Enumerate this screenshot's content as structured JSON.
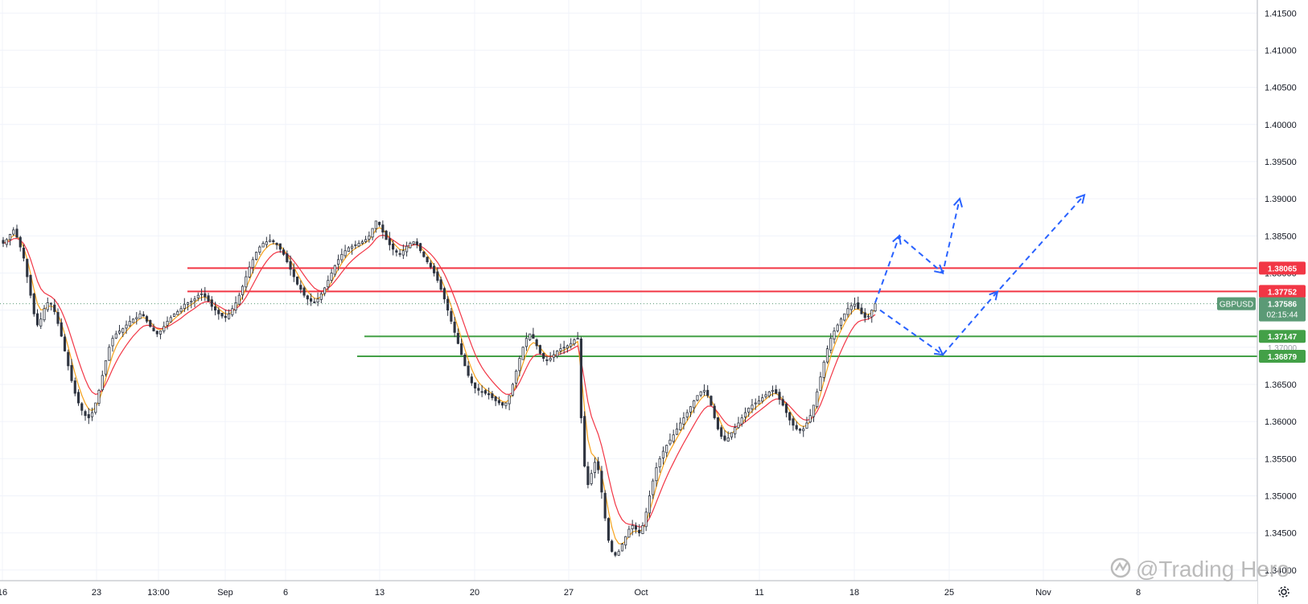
{
  "symbol": "GBPUSD",
  "countdown": "02:15:44",
  "watermark": "@Trading Hero",
  "colors": {
    "up": "#26a69a",
    "down": "#ef5350",
    "candle_body": "#2e3440",
    "resistance": "#f23645",
    "support": "#43a047",
    "projection": "#2962ff",
    "ema_fast": "#f7a21b",
    "ema_slow": "#f23645",
    "price_tag": "#5b9a76"
  },
  "chart_data": {
    "type": "candlestick",
    "title": "",
    "xlabel": "",
    "ylabel": "",
    "ylim": [
      1.33857,
      1.41676
    ],
    "y_ticks": [
      "1.41500",
      "1.41000",
      "1.40500",
      "1.40000",
      "1.39500",
      "1.39000",
      "1.38500",
      "1.38000",
      "1.37500",
      "1.37000",
      "1.36500",
      "1.36000",
      "1.35500",
      "1.35000",
      "1.34500",
      "1.34000"
    ],
    "x_ticks": [
      "16",
      "23",
      "13:00",
      "Sep",
      "6",
      "13",
      "20",
      "27",
      "Oct",
      "11",
      "18",
      "25",
      "Nov",
      "8"
    ],
    "grid": true,
    "levels": [
      {
        "label": "1.38065",
        "value": 1.38065,
        "kind": "resistance"
      },
      {
        "label": "1.37752",
        "value": 1.37752,
        "kind": "resistance"
      },
      {
        "label": "1.37147",
        "value": 1.37147,
        "kind": "support"
      },
      {
        "label": "1.36879",
        "value": 1.36879,
        "kind": "support"
      }
    ],
    "current_price": {
      "symbol": "GBPUSD",
      "value": "1.37586",
      "countdown": "02:15:44"
    },
    "hidden_label": "1.37000",
    "closes_approx": [
      1.384,
      1.3845,
      1.3852,
      1.3858,
      1.3848,
      1.3835,
      1.382,
      1.3795,
      1.377,
      1.3745,
      1.373,
      1.3738,
      1.3752,
      1.376,
      1.3758,
      1.3748,
      1.3732,
      1.3715,
      1.3695,
      1.3675,
      1.3655,
      1.3638,
      1.3625,
      1.3615,
      1.3608,
      1.3605,
      1.3612,
      1.3625,
      1.3642,
      1.3662,
      1.3682,
      1.37,
      1.3712,
      1.3718,
      1.3722,
      1.3725,
      1.373,
      1.3735,
      1.3738,
      1.374,
      1.3745,
      1.3742,
      1.3735,
      1.3728,
      1.3722,
      1.3718,
      1.3722,
      1.3728,
      1.3735,
      1.374,
      1.3745,
      1.3748,
      1.3752,
      1.3758,
      1.376,
      1.3762,
      1.3765,
      1.377,
      1.3772,
      1.3768,
      1.3762,
      1.3755,
      1.375,
      1.3745,
      1.3742,
      1.374,
      1.3745,
      1.3752,
      1.376,
      1.377,
      1.3782,
      1.3795,
      1.3808,
      1.3818,
      1.3828,
      1.3835,
      1.384,
      1.3842,
      1.3844,
      1.3842,
      1.3838,
      1.3832,
      1.3825,
      1.3815,
      1.3805,
      1.3795,
      1.3785,
      1.3778,
      1.377,
      1.3765,
      1.3762,
      1.376,
      1.3765,
      1.3772,
      1.378,
      1.379,
      1.38,
      1.381,
      1.3818,
      1.3825,
      1.383,
      1.3834,
      1.3836,
      1.3838,
      1.384,
      1.3842,
      1.3845,
      1.385,
      1.386,
      1.387,
      1.3865,
      1.3855,
      1.3845,
      1.3838,
      1.3832,
      1.3828,
      1.3825,
      1.383,
      1.3836,
      1.384,
      1.3842,
      1.3838,
      1.383,
      1.3822,
      1.3815,
      1.3808,
      1.38,
      1.379,
      1.3778,
      1.3765,
      1.375,
      1.3735,
      1.372,
      1.3705,
      1.369,
      1.3675,
      1.3662,
      1.3652,
      1.3645,
      1.3642,
      1.364,
      1.3638,
      1.3636,
      1.3632,
      1.3628,
      1.3625,
      1.3622,
      1.3625,
      1.3635,
      1.365,
      1.3668,
      1.3685,
      1.37,
      1.3712,
      1.3718,
      1.3712,
      1.3702,
      1.3692,
      1.3685,
      1.3682,
      1.3685,
      1.369,
      1.3695,
      1.3698,
      1.37,
      1.3702,
      1.3705,
      1.371,
      1.3712,
      1.3605,
      1.354,
      1.3515,
      1.353,
      1.3545,
      1.3535,
      1.3505,
      1.347,
      1.344,
      1.3425,
      1.342,
      1.3425,
      1.3435,
      1.3445,
      1.3455,
      1.346,
      1.3455,
      1.345,
      1.346,
      1.3478,
      1.35,
      1.352,
      1.3538,
      1.355,
      1.356,
      1.3568,
      1.3575,
      1.3582,
      1.359,
      1.3598,
      1.3605,
      1.3612,
      1.362,
      1.3628,
      1.3635,
      1.364,
      1.3642,
      1.3635,
      1.3622,
      1.3605,
      1.359,
      1.358,
      1.3575,
      1.3578,
      1.3585,
      1.3592,
      1.3598,
      1.3605,
      1.3612,
      1.3618,
      1.3622,
      1.3625,
      1.3628,
      1.3632,
      1.3636,
      1.364,
      1.3642,
      1.3638,
      1.363,
      1.3622,
      1.3612,
      1.3602,
      1.3595,
      1.359,
      1.3588,
      1.359,
      1.3598,
      1.3608,
      1.3622,
      1.364,
      1.366,
      1.368,
      1.3698,
      1.3712,
      1.3722,
      1.373,
      1.3738,
      1.3745,
      1.3752,
      1.3756,
      1.3758,
      1.3752,
      1.3745,
      1.374,
      1.3742,
      1.375,
      1.37586
    ]
  }
}
